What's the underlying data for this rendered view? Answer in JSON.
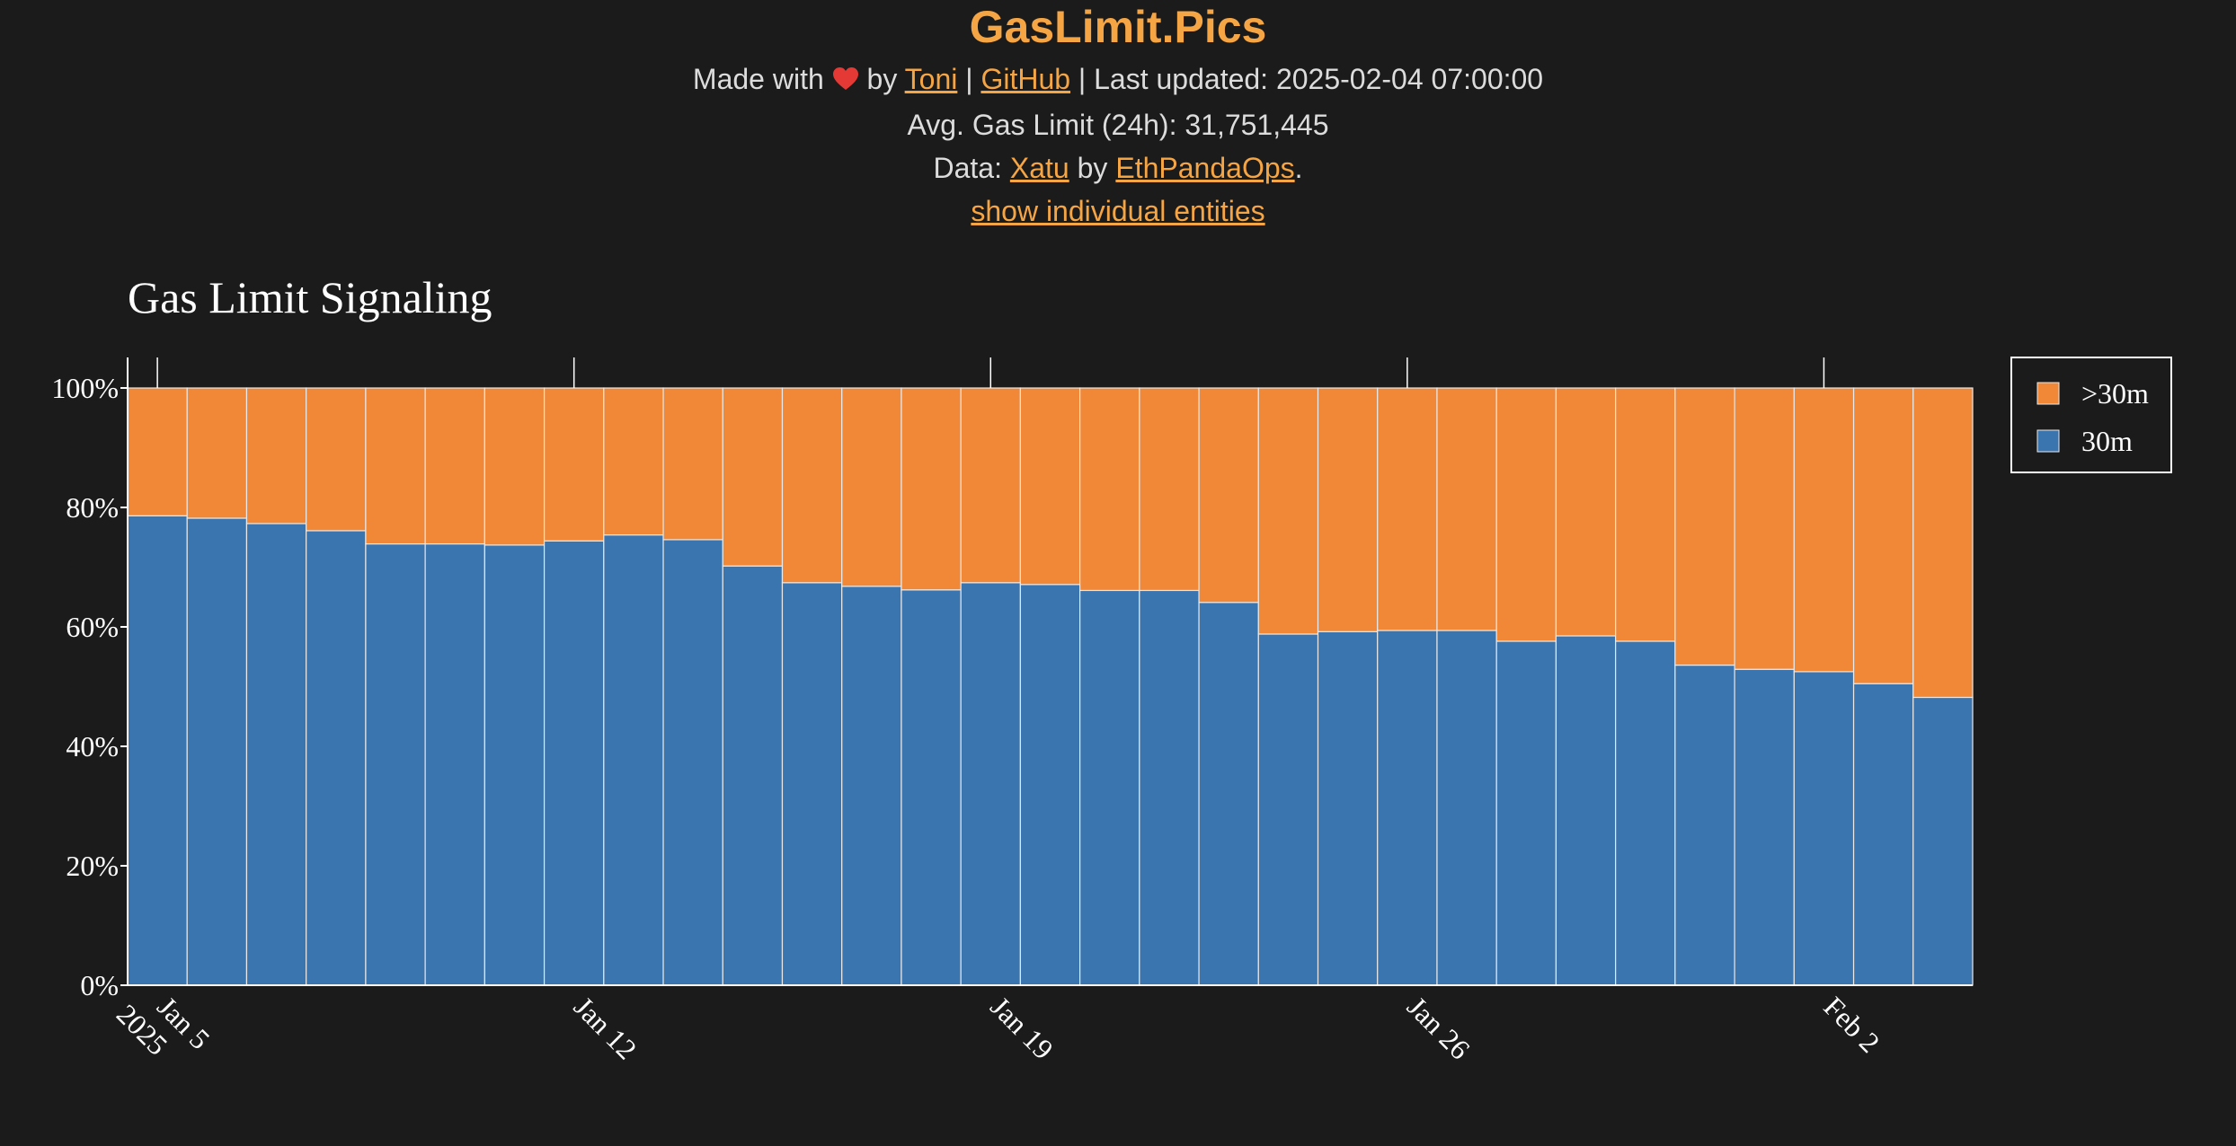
{
  "header": {
    "title": "GasLimit.Pics",
    "made_with_prefix": "Made with",
    "by_word": "by",
    "author_link": "Toni",
    "separator": "|",
    "github_link": "GitHub",
    "last_updated_text": "Last updated: 2025-02-04 07:00:00",
    "avg_text": "Avg. Gas Limit (24h): 31,751,445",
    "data_prefix": "Data:",
    "data_source_link": "Xatu",
    "data_by": "by",
    "data_org_link": "EthPandaOps",
    "data_suffix": ".",
    "toggle_link": "show individual entities"
  },
  "colors": {
    "background": "#1b1b1b",
    "accent": "#f5a544",
    "series_30m": "#3b75b0",
    "series_gt30m": "#f08838",
    "heart": "#e53935"
  },
  "chart_data": {
    "type": "bar",
    "stacked": true,
    "title": "Gas Limit Signaling",
    "xlabel": "",
    "ylabel": "",
    "ylim": [
      0,
      100
    ],
    "y_ticks": [
      "0%",
      "20%",
      "40%",
      "60%",
      "80%",
      "100%"
    ],
    "x_ticks": [
      {
        "label": "Jan 5",
        "sublabel": "2025",
        "date": "2025-01-05"
      },
      {
        "label": "Jan 12",
        "sublabel": "",
        "date": "2025-01-12"
      },
      {
        "label": "Jan 19",
        "sublabel": "",
        "date": "2025-01-19"
      },
      {
        "label": "Jan 26",
        "sublabel": "",
        "date": "2025-01-26"
      },
      {
        "label": "Feb 2",
        "sublabel": "",
        "date": "2025-02-02"
      }
    ],
    "categories": [
      "2025-01-05",
      "2025-01-06",
      "2025-01-07",
      "2025-01-08",
      "2025-01-09",
      "2025-01-10",
      "2025-01-11",
      "2025-01-12",
      "2025-01-13",
      "2025-01-14",
      "2025-01-15",
      "2025-01-16",
      "2025-01-17",
      "2025-01-18",
      "2025-01-19",
      "2025-01-20",
      "2025-01-21",
      "2025-01-22",
      "2025-01-23",
      "2025-01-24",
      "2025-01-25",
      "2025-01-26",
      "2025-01-27",
      "2025-01-28",
      "2025-01-29",
      "2025-01-30",
      "2025-01-31",
      "2025-02-01",
      "2025-02-02",
      "2025-02-03",
      "2025-02-04"
    ],
    "series": [
      {
        "name": "30m",
        "color": "#3b75b0",
        "values": [
          78.6,
          78.2,
          77.3,
          76.1,
          73.9,
          73.9,
          73.7,
          74.4,
          75.4,
          74.6,
          70.2,
          67.4,
          66.8,
          66.2,
          67.4,
          67.1,
          66.1,
          66.1,
          64.1,
          58.8,
          59.2,
          59.4,
          59.4,
          57.6,
          58.5,
          57.6,
          53.6,
          52.9,
          52.5,
          50.5,
          48.2
        ]
      },
      {
        "name": ">30m",
        "color": "#f08838",
        "values": [
          21.4,
          21.8,
          22.7,
          23.9,
          26.1,
          26.1,
          26.3,
          25.6,
          24.6,
          25.4,
          29.8,
          32.6,
          33.2,
          33.8,
          32.6,
          32.9,
          33.9,
          33.9,
          35.9,
          41.2,
          40.8,
          40.6,
          40.6,
          42.4,
          41.5,
          42.4,
          46.4,
          47.1,
          47.5,
          49.5,
          51.8
        ]
      }
    ],
    "legend": {
      "position": "right",
      "entries": [
        ">30m",
        "30m"
      ]
    },
    "grid": false
  }
}
